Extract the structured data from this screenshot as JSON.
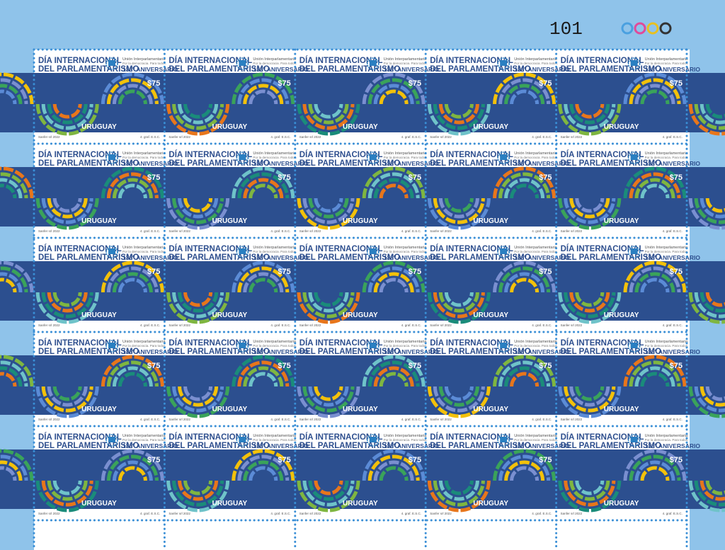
{
  "sheet": {
    "number": "101",
    "layout": {
      "rows": 5,
      "cols": 5
    }
  },
  "stamp": {
    "title_line1": "DÍA INTERNACIONAL",
    "title_line2": "DEL PARLAMENTARISMO",
    "org_line1": "Unión Interparlamentaria",
    "org_line2": "Por la democracia. Para todos.",
    "anniversary": "133º ANIVERSARIO",
    "value": "$75",
    "country": "URUGUAY",
    "designer": "Sanfer srl 2022",
    "printer": "4. graf. E.S.C.",
    "logo_year": "1889"
  },
  "colors": {
    "margin": "#8fc3ea",
    "paper": "#ffffff",
    "band": "#2c4f8f",
    "title": "#2e4f8e",
    "perforation": "#3a8fd6",
    "arc_palette": [
      "#f3c10a",
      "#e8761b",
      "#7a8fd0",
      "#7fb640",
      "#3aa35a",
      "#6fc3c9",
      "#5b8bd6",
      "#1a8c7a"
    ]
  }
}
